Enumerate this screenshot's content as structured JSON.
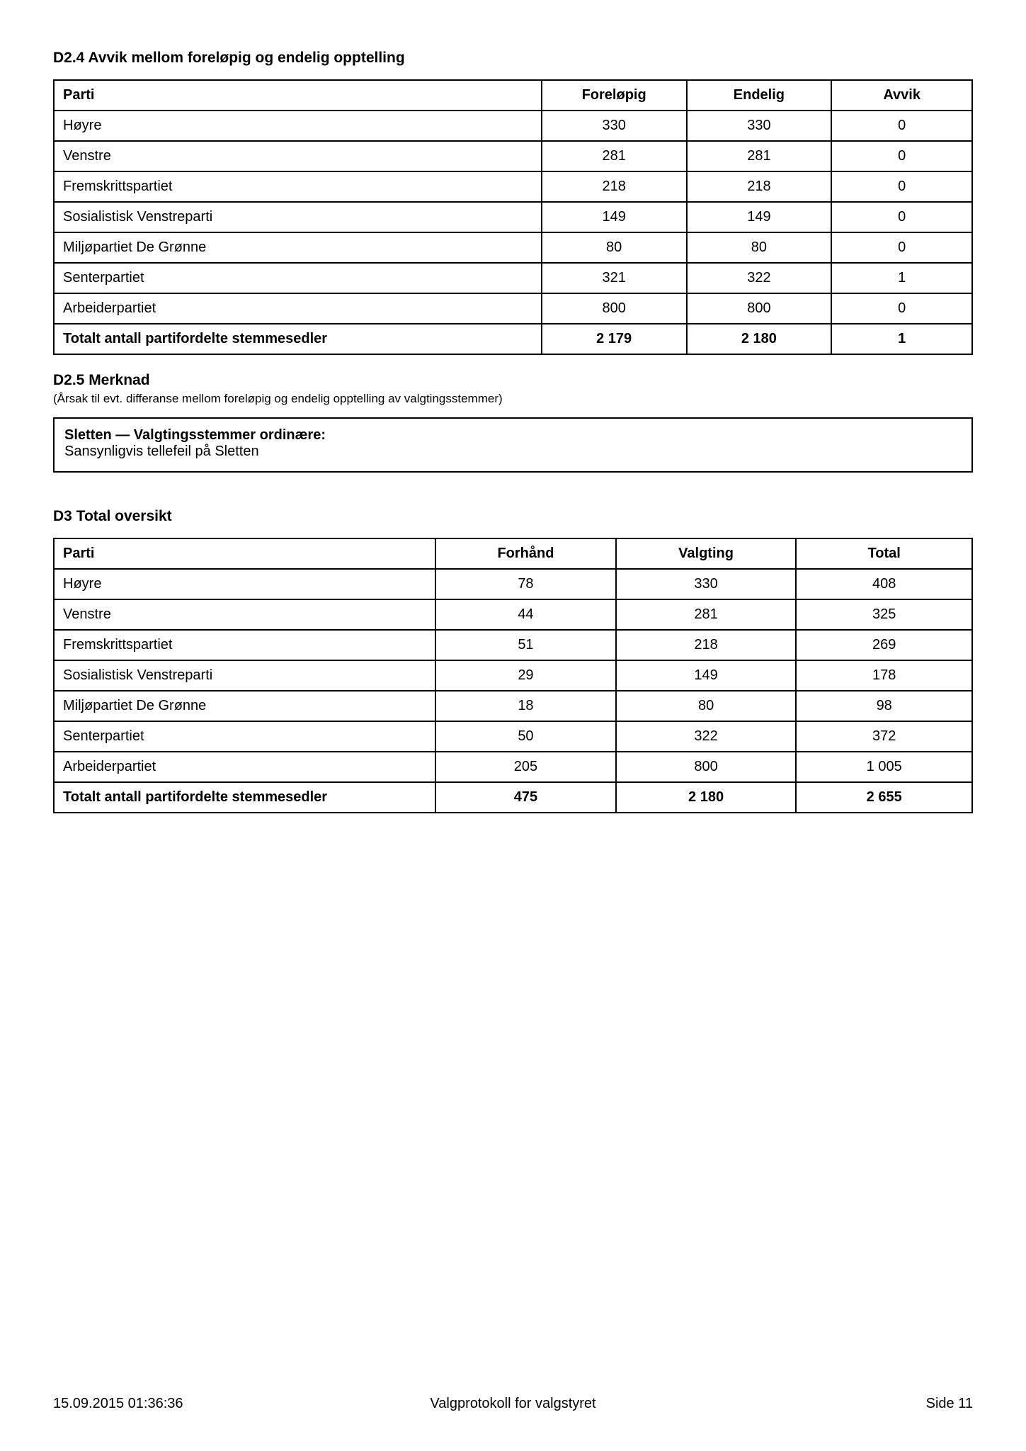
{
  "section1": {
    "heading": "D2.4 Avvik mellom foreløpig og endelig opptelling",
    "columns": [
      "Parti",
      "Foreløpig",
      "Endelig",
      "Avvik"
    ],
    "rows": [
      [
        "Høyre",
        "330",
        "330",
        "0"
      ],
      [
        "Venstre",
        "281",
        "281",
        "0"
      ],
      [
        "Fremskrittspartiet",
        "218",
        "218",
        "0"
      ],
      [
        "Sosialistisk Venstreparti",
        "149",
        "149",
        "0"
      ],
      [
        "Miljøpartiet De Grønne",
        "80",
        "80",
        "0"
      ],
      [
        "Senterpartiet",
        "321",
        "322",
        "1"
      ],
      [
        "Arbeiderpartiet",
        "800",
        "800",
        "0"
      ]
    ],
    "total_row": [
      "Totalt antall partifordelte stemmesedler",
      "2 179",
      "2 180",
      "1"
    ]
  },
  "remark": {
    "heading": "D2.5 Merknad",
    "subtext": "(Årsak til evt. differanse mellom foreløpig og endelig opptelling av valgtingsstemmer)",
    "line1": "Sletten — Valgtingsstemmer ordinære:",
    "line2": "Sansynligvis tellefeil på Sletten"
  },
  "section2": {
    "heading": "D3 Total oversikt",
    "columns": [
      "Parti",
      "Forhånd",
      "Valgting",
      "Total"
    ],
    "rows": [
      [
        "Høyre",
        "78",
        "330",
        "408"
      ],
      [
        "Venstre",
        "44",
        "281",
        "325"
      ],
      [
        "Fremskrittspartiet",
        "51",
        "218",
        "269"
      ],
      [
        "Sosialistisk Venstreparti",
        "29",
        "149",
        "178"
      ],
      [
        "Miljøpartiet De Grønne",
        "18",
        "80",
        "98"
      ],
      [
        "Senterpartiet",
        "50",
        "322",
        "372"
      ],
      [
        "Arbeiderpartiet",
        "205",
        "800",
        "1 005"
      ]
    ],
    "total_row": [
      "Totalt antall partifordelte stemmesedler",
      "475",
      "2 180",
      "2 655"
    ]
  },
  "footer": {
    "timestamp": "15.09.2015 01:36:36",
    "title": "Valgprotokoll for valgstyret",
    "page": "Side 11"
  }
}
